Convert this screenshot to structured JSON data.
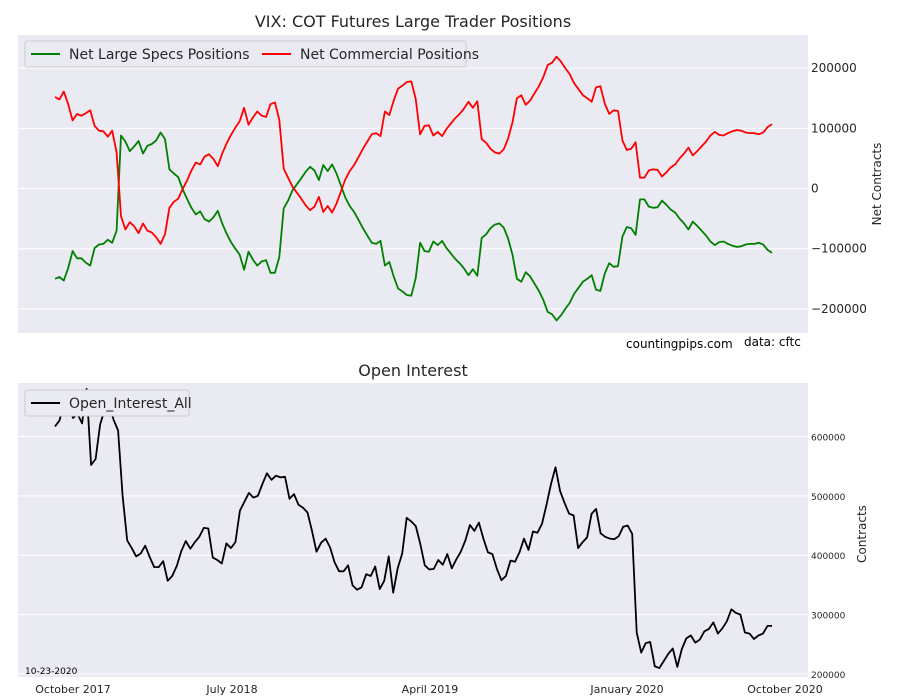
{
  "chart_data": [
    {
      "type": "line",
      "title": "VIX: COT Futures Large Trader Positions",
      "ylabel": "Net Contracts",
      "ylim": [
        -240000,
        255000
      ],
      "yticks": [
        -200000,
        -100000,
        0,
        100000,
        200000
      ],
      "ytick_labels": [
        "−200000",
        "−100000",
        "0",
        "100000",
        "200000"
      ],
      "legend_position": "top-left",
      "grid": true,
      "annotations": [
        "countingpips.com",
        "data: cftc"
      ],
      "series": [
        {
          "name": "Net Large Specs Positions",
          "color": "#008000",
          "values": [
            -150000,
            -147000,
            -153000,
            -132000,
            -104000,
            -116000,
            -116000,
            -123000,
            -128000,
            -99000,
            -93000,
            -92000,
            -85000,
            -90000,
            -70000,
            88000,
            78000,
            62000,
            70000,
            79000,
            58000,
            71000,
            74000,
            80000,
            93000,
            82000,
            32000,
            25000,
            19000,
            -1000,
            -17000,
            -32000,
            -43000,
            -38000,
            -51000,
            -55000,
            -48000,
            -37000,
            -58000,
            -75000,
            -89000,
            -100000,
            -110000,
            -135000,
            -105000,
            -118000,
            -128000,
            -121000,
            -119000,
            -140000,
            -140000,
            -114000,
            -33000,
            -20000,
            -3000,
            7000,
            17000,
            28000,
            36000,
            30000,
            14000,
            39000,
            29000,
            40000,
            25000,
            5000,
            -15000,
            -29000,
            -39000,
            -52000,
            -66000,
            -78000,
            -90000,
            -92000,
            -87000,
            -128000,
            -122000,
            -146000,
            -166000,
            -171000,
            -177000,
            -178000,
            -149000,
            -90000,
            -104000,
            -105000,
            -88000,
            -94000,
            -87000,
            -99000,
            -108000,
            -117000,
            -124000,
            -133000,
            -144000,
            -134000,
            -145000,
            -82000,
            -76000,
            -66000,
            -60000,
            -58000,
            -65000,
            -83000,
            -110000,
            -150000,
            -155000,
            -139000,
            -146000,
            -158000,
            -170000,
            -185000,
            -205000,
            -209000,
            -219000,
            -211000,
            -200000,
            -190000,
            -175000,
            -165000,
            -155000,
            -150000,
            -144000,
            -168000,
            -170000,
            -141000,
            -124000,
            -130000,
            -129000,
            -80000,
            -64000,
            -66000,
            -77000,
            -18000,
            -18000,
            -30000,
            -32000,
            -31000,
            -20000,
            -27000,
            -35000,
            -40000,
            -50000,
            -58000,
            -68000,
            -55000,
            -62000,
            -70000,
            -78000,
            -88000,
            -94000,
            -89000,
            -88000,
            -92000,
            -95000,
            -97000,
            -96000,
            -93000,
            -92000,
            -92000,
            -90000,
            -93000,
            -102000,
            -107000
          ]
        },
        {
          "name": "Net Commercial Positions",
          "color": "#ff0000",
          "values": [
            152000,
            148000,
            161000,
            140000,
            113000,
            124000,
            121000,
            125000,
            130000,
            104000,
            96000,
            95000,
            86000,
            96000,
            60000,
            -46000,
            -68000,
            -56000,
            -63000,
            -74000,
            -58000,
            -70000,
            -73000,
            -81000,
            -92000,
            -76000,
            -32000,
            -22000,
            -17000,
            -1000,
            13000,
            30000,
            43000,
            40000,
            53000,
            57000,
            49000,
            37000,
            58000,
            75000,
            89000,
            101000,
            112000,
            134000,
            106000,
            118000,
            128000,
            121000,
            119000,
            140000,
            143000,
            114000,
            33000,
            18000,
            3000,
            -7000,
            -17000,
            -28000,
            -36000,
            -30000,
            -14000,
            -39000,
            -29000,
            -40000,
            -25000,
            -5000,
            15000,
            29000,
            39000,
            52000,
            66000,
            78000,
            90000,
            92000,
            87000,
            128000,
            122000,
            146000,
            166000,
            171000,
            177000,
            178000,
            149000,
            90000,
            104000,
            105000,
            88000,
            94000,
            87000,
            99000,
            108000,
            117000,
            124000,
            133000,
            144000,
            134000,
            145000,
            82000,
            76000,
            66000,
            60000,
            58000,
            65000,
            83000,
            110000,
            150000,
            155000,
            139000,
            146000,
            158000,
            170000,
            185000,
            205000,
            209000,
            219000,
            211000,
            200000,
            190000,
            175000,
            165000,
            155000,
            150000,
            144000,
            168000,
            170000,
            141000,
            124000,
            130000,
            129000,
            80000,
            64000,
            66000,
            77000,
            18000,
            18000,
            30000,
            32000,
            31000,
            20000,
            27000,
            35000,
            40000,
            50000,
            58000,
            68000,
            55000,
            62000,
            70000,
            78000,
            88000,
            94000,
            89000,
            88000,
            92000,
            95000,
            97000,
            96000,
            93000,
            92000,
            92000,
            90000,
            93000,
            102000,
            107000
          ]
        }
      ]
    },
    {
      "type": "line",
      "title": "Open Interest",
      "ylabel": "Contracts",
      "ylim": [
        195000,
        690000
      ],
      "yticks": [
        200000,
        300000,
        400000,
        500000,
        600000
      ],
      "ytick_labels": [
        "200000",
        "300000",
        "400000",
        "500000",
        "600000"
      ],
      "x_tick_labels": [
        "October 2017",
        "July 2018",
        "April 2019",
        "January 2020",
        "October 2020"
      ],
      "legend_position": "top-left",
      "grid": true,
      "annotations": [
        "10-23-2020"
      ],
      "series": [
        {
          "name": "Open_Interest_All",
          "color": "#000000",
          "values": [
            617000,
            627000,
            655000,
            653000,
            631000,
            638000,
            622000,
            680000,
            552000,
            562000,
            620000,
            645000,
            653000,
            628000,
            610000,
            500000,
            425000,
            412000,
            398000,
            403000,
            416000,
            397000,
            380000,
            380000,
            390000,
            357000,
            365000,
            382000,
            407000,
            424000,
            411000,
            422000,
            431000,
            446000,
            445000,
            396000,
            392000,
            386000,
            420000,
            412000,
            422000,
            475000,
            490000,
            505000,
            497000,
            500000,
            520000,
            538000,
            527000,
            534000,
            531000,
            532000,
            495000,
            503000,
            485000,
            480000,
            472000,
            441000,
            406000,
            421000,
            428000,
            413000,
            388000,
            373000,
            373000,
            383000,
            349000,
            342000,
            346000,
            368000,
            365000,
            381000,
            343000,
            357000,
            398000,
            337000,
            378000,
            403000,
            463000,
            457000,
            449000,
            419000,
            383000,
            376000,
            377000,
            392000,
            384000,
            402000,
            378000,
            393000,
            406000,
            425000,
            451000,
            441000,
            455000,
            428000,
            405000,
            402000,
            377000,
            358000,
            365000,
            391000,
            389000,
            405000,
            428000,
            409000,
            440000,
            438000,
            453000,
            485000,
            520000,
            548000,
            508000,
            488000,
            470000,
            467000,
            412000,
            422000,
            430000,
            470000,
            478000,
            437000,
            431000,
            428000,
            427000,
            432000,
            448000,
            450000,
            436000,
            270000,
            236000,
            252000,
            254000,
            213000,
            210000,
            222000,
            234000,
            243000,
            212000,
            242000,
            260000,
            265000,
            253000,
            258000,
            272000,
            276000,
            287000,
            268000,
            277000,
            289000,
            309000,
            303000,
            300000,
            270000,
            268000,
            259000,
            265000,
            268000,
            281000,
            281000
          ]
        }
      ]
    }
  ]
}
